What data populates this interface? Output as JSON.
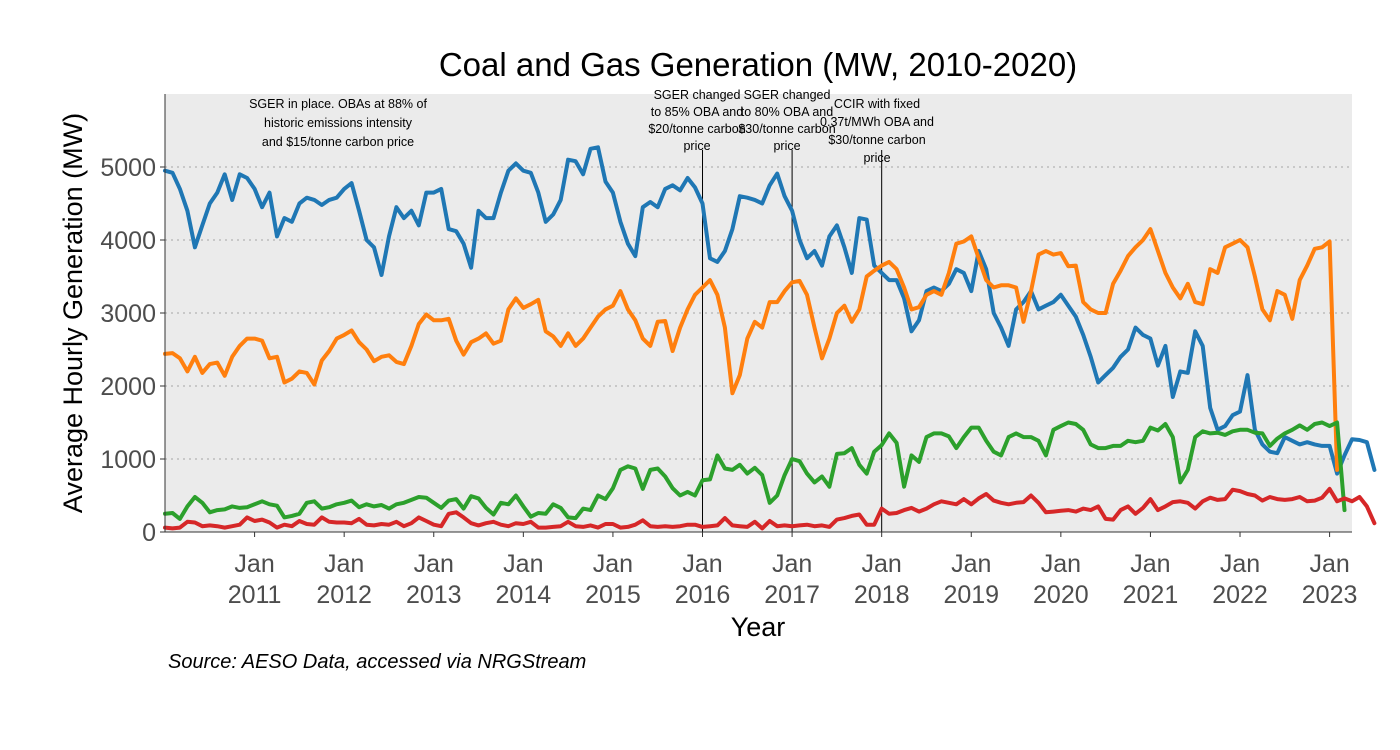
{
  "chart_data": {
    "type": "line",
    "title": "Coal and Gas Generation (MW, 2010-2020)",
    "xlabel": "Year",
    "ylabel": "Average Hourly Generation (MW)",
    "caption": "Source: AESO Data, accessed via NRGStream",
    "x_start": "2010-01",
    "x_end": "2023-04",
    "x_tick_labels": [
      {
        "month": "Jan",
        "year": "2011",
        "date": "2011-01"
      },
      {
        "month": "Jan",
        "year": "2012",
        "date": "2012-01"
      },
      {
        "month": "Jan",
        "year": "2013",
        "date": "2013-01"
      },
      {
        "month": "Jan",
        "year": "2014",
        "date": "2014-01"
      },
      {
        "month": "Jan",
        "year": "2015",
        "date": "2015-01"
      },
      {
        "month": "Jan",
        "year": "2016",
        "date": "2016-01"
      },
      {
        "month": "Jan",
        "year": "2017",
        "date": "2017-01"
      },
      {
        "month": "Jan",
        "year": "2018",
        "date": "2018-01"
      },
      {
        "month": "Jan",
        "year": "2019",
        "date": "2019-01"
      },
      {
        "month": "Jan",
        "year": "2020",
        "date": "2020-01"
      },
      {
        "month": "Jan",
        "year": "2021",
        "date": "2021-01"
      },
      {
        "month": "Jan",
        "year": "2022",
        "date": "2022-01"
      },
      {
        "month": "Jan",
        "year": "2023",
        "date": "2023-01"
      }
    ],
    "y_ticks": [
      "0",
      "1000",
      "2000",
      "3000",
      "4000",
      "5000"
    ],
    "ylim": [
      0,
      6000
    ],
    "grid": "horizontal-dotted",
    "legend": "none",
    "annotations": [
      {
        "date": "2010-01",
        "vline": false,
        "lines": [
          "SGER in place. OBAs at 88% of",
          "historic emissions intensity",
          "and $15/tonne carbon price"
        ]
      },
      {
        "date": "2016-01",
        "vline": true,
        "lines": [
          "SGER changed",
          "to 85% OBA and",
          "$20/tonne carbon",
          "price"
        ]
      },
      {
        "date": "2017-01",
        "vline": true,
        "lines": [
          "SGER changed",
          "to 80% OBA and",
          "$30/tonne carbon",
          "price"
        ]
      },
      {
        "date": "2018-01",
        "vline": true,
        "lines": [
          "CCIR with fixed",
          "0.37t/MWh OBA and",
          "$30/tonne carbon",
          "price"
        ]
      }
    ],
    "series": [
      {
        "color": "#1f77b4",
        "values": [
          4950,
          4920,
          4700,
          4400,
          3900,
          4200,
          4500,
          4650,
          4900,
          4550,
          4900,
          4850,
          4700,
          4450,
          4650,
          4050,
          4300,
          4250,
          4500,
          4580,
          4550,
          4480,
          4550,
          4580,
          4700,
          4780,
          4400,
          4000,
          3900,
          3520,
          4050,
          4450,
          4300,
          4400,
          4200,
          4650,
          4650,
          4700,
          4150,
          4120,
          3950,
          3620,
          4400,
          4300,
          4300,
          4650,
          4950,
          5050,
          4950,
          4920,
          4650,
          4250,
          4350,
          4550,
          5100,
          5080,
          4900,
          5250,
          5270,
          4800,
          4650,
          4250,
          3950,
          3780,
          4450,
          4520,
          4450,
          4700,
          4750,
          4680,
          4850,
          4720,
          4500,
          3750,
          3700,
          3850,
          4150,
          4600,
          4580,
          4550,
          4500,
          4750,
          4910,
          4600,
          4400,
          4000,
          3750,
          3850,
          3650,
          4050,
          4200,
          3900,
          3550,
          4300,
          4280,
          3650,
          3550,
          3450,
          3450,
          3200,
          2750,
          2900,
          3300,
          3350,
          3300,
          3400,
          3600,
          3550,
          3300,
          3850,
          3600,
          3000,
          2800,
          2550,
          3050,
          3150,
          3300,
          3050,
          3100,
          3150,
          3250,
          3100,
          2950,
          2700,
          2400,
          2050,
          2150,
          2250,
          2400,
          2500,
          2800,
          2700,
          2650,
          2280,
          2550,
          1850,
          2200,
          2180,
          2750,
          2550,
          1700,
          1400,
          1450,
          1600,
          1650,
          2150,
          1400,
          1200,
          1100,
          1080,
          1300,
          1250,
          1200,
          1230,
          1200,
          1180,
          1180,
          800,
          1050,
          1270,
          1260,
          1230,
          850
        ]
      },
      {
        "color": "#ff7f0e",
        "values": [
          2440,
          2450,
          2380,
          2200,
          2400,
          2180,
          2300,
          2320,
          2140,
          2400,
          2550,
          2650,
          2650,
          2620,
          2380,
          2400,
          2050,
          2100,
          2200,
          2180,
          2020,
          2350,
          2480,
          2650,
          2700,
          2760,
          2600,
          2500,
          2340,
          2400,
          2420,
          2330,
          2300,
          2550,
          2850,
          2980,
          2900,
          2900,
          2920,
          2620,
          2430,
          2600,
          2650,
          2720,
          2580,
          2620,
          3050,
          3200,
          3070,
          3120,
          3180,
          2750,
          2680,
          2550,
          2720,
          2550,
          2650,
          2800,
          2950,
          3050,
          3100,
          3300,
          3050,
          2900,
          2650,
          2550,
          2880,
          2890,
          2480,
          2800,
          3050,
          3250,
          3350,
          3450,
          3250,
          2800,
          1900,
          2150,
          2650,
          2880,
          2800,
          3150,
          3150,
          3300,
          3420,
          3440,
          3250,
          2800,
          2380,
          2650,
          3000,
          3100,
          2880,
          3050,
          3500,
          3580,
          3650,
          3700,
          3600,
          3350,
          3050,
          3080,
          3250,
          3300,
          3250,
          3550,
          3950,
          3980,
          4050,
          3750,
          3450,
          3350,
          3380,
          3380,
          3350,
          2880,
          3300,
          3800,
          3850,
          3800,
          3820,
          3640,
          3650,
          3150,
          3050,
          3000,
          3000,
          3400,
          3580,
          3780,
          3900,
          4000,
          4150,
          3850,
          3550,
          3350,
          3200,
          3400,
          3150,
          3120,
          3600,
          3550,
          3900,
          3950,
          4000,
          3900,
          3500,
          3050,
          2900,
          3300,
          3250,
          2920,
          3450,
          3650,
          3880,
          3900,
          3980,
          850
        ]
      },
      {
        "color": "#2ca02c",
        "values": [
          250,
          260,
          180,
          350,
          480,
          400,
          270,
          300,
          310,
          350,
          330,
          340,
          380,
          420,
          380,
          360,
          200,
          220,
          250,
          400,
          420,
          320,
          340,
          380,
          400,
          430,
          340,
          380,
          350,
          370,
          320,
          380,
          400,
          440,
          480,
          470,
          400,
          330,
          430,
          450,
          320,
          490,
          460,
          330,
          240,
          400,
          380,
          500,
          350,
          210,
          260,
          250,
          380,
          330,
          200,
          190,
          320,
          300,
          500,
          450,
          600,
          850,
          900,
          870,
          590,
          850,
          870,
          760,
          600,
          500,
          550,
          500,
          710,
          720,
          1050,
          870,
          850,
          920,
          800,
          880,
          780,
          400,
          500,
          780,
          1000,
          970,
          800,
          680,
          760,
          620,
          1070,
          1080,
          1150,
          920,
          800,
          1100,
          1190,
          1350,
          1220,
          620,
          1050,
          960,
          1300,
          1350,
          1350,
          1310,
          1150,
          1300,
          1430,
          1430,
          1250,
          1100,
          1050,
          1300,
          1350,
          1300,
          1300,
          1250,
          1050,
          1400,
          1450,
          1500,
          1480,
          1400,
          1200,
          1150,
          1150,
          1180,
          1180,
          1250,
          1230,
          1250,
          1430,
          1390,
          1480,
          1300,
          680,
          850,
          1300,
          1380,
          1350,
          1360,
          1330,
          1380,
          1400,
          1400,
          1360,
          1350,
          1180,
          1280,
          1350,
          1400,
          1460,
          1400,
          1480,
          1500,
          1450,
          1500,
          300
        ]
      },
      {
        "color": "#d62728",
        "values": [
          60,
          50,
          60,
          140,
          130,
          80,
          90,
          80,
          60,
          80,
          100,
          200,
          150,
          170,
          130,
          60,
          100,
          80,
          150,
          110,
          100,
          200,
          140,
          130,
          130,
          120,
          180,
          100,
          90,
          110,
          100,
          140,
          80,
          120,
          200,
          150,
          100,
          80,
          250,
          270,
          200,
          120,
          90,
          120,
          140,
          100,
          80,
          120,
          110,
          140,
          60,
          60,
          70,
          80,
          140,
          80,
          70,
          90,
          60,
          110,
          110,
          60,
          70,
          100,
          160,
          80,
          70,
          80,
          70,
          80,
          100,
          100,
          70,
          80,
          90,
          190,
          90,
          80,
          70,
          140,
          50,
          150,
          80,
          90,
          80,
          90,
          100,
          80,
          90,
          70,
          170,
          190,
          220,
          240,
          100,
          100,
          320,
          250,
          260,
          300,
          330,
          280,
          320,
          380,
          420,
          400,
          380,
          450,
          380,
          460,
          520,
          430,
          400,
          380,
          400,
          410,
          500,
          400,
          270,
          280,
          290,
          300,
          280,
          320,
          300,
          350,
          180,
          170,
          300,
          350,
          250,
          330,
          450,
          300,
          350,
          410,
          420,
          400,
          320,
          420,
          470,
          440,
          450,
          580,
          560,
          520,
          500,
          430,
          480,
          450,
          440,
          450,
          480,
          420,
          430,
          470,
          590,
          420,
          460,
          420,
          480,
          350,
          120
        ]
      }
    ]
  }
}
